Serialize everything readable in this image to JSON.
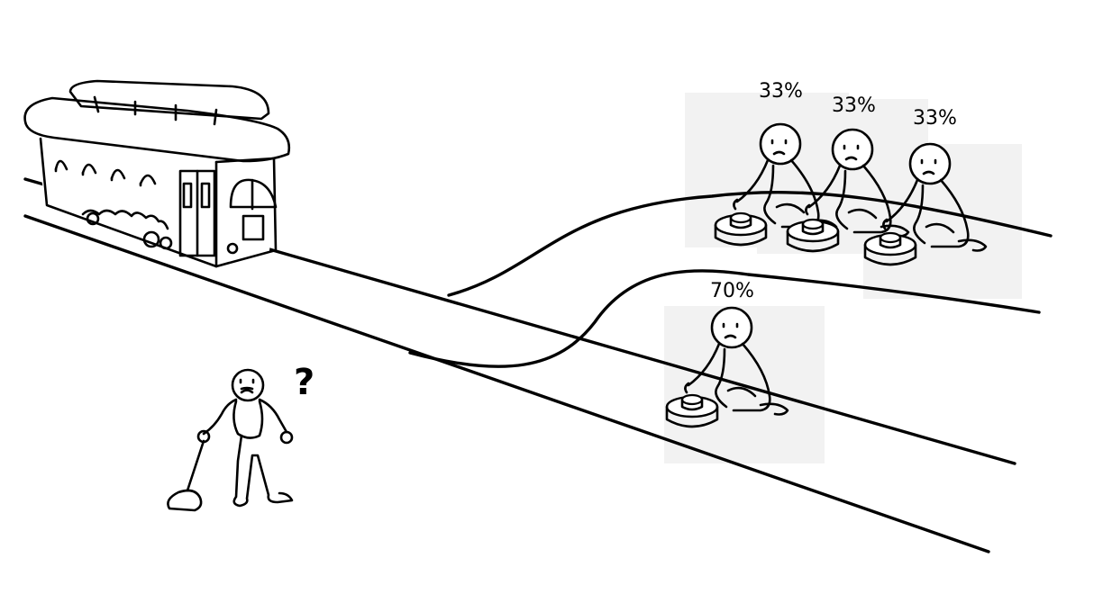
{
  "scene": {
    "upper_group": {
      "people": [
        {
          "label": "33%"
        },
        {
          "label": "33%"
        },
        {
          "label": "33%"
        }
      ]
    },
    "lower_group": {
      "people": [
        {
          "label": "70%"
        }
      ]
    },
    "lever_operator": {
      "thought": "?"
    }
  }
}
